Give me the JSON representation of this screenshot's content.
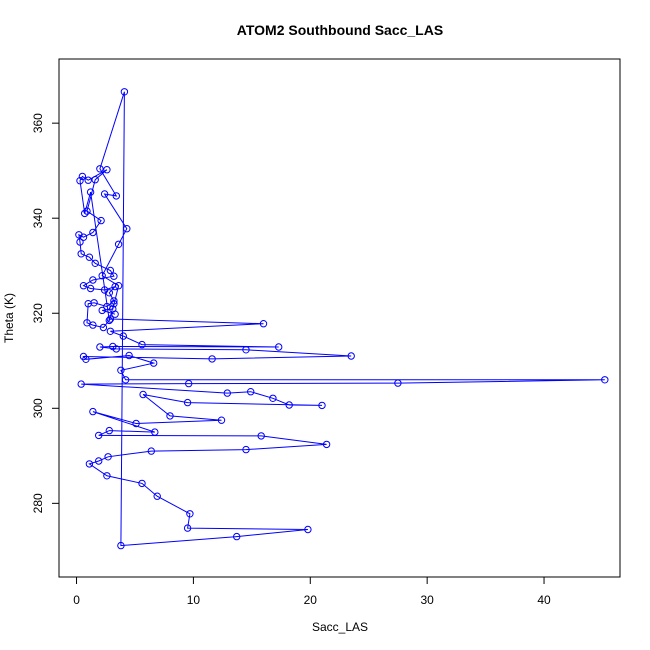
{
  "chart_data": {
    "type": "scatter",
    "title": "ATOM2 Southbound Sacc_LAS",
    "xlabel": "Sacc_LAS",
    "ylabel": "Theta (K)",
    "xlim": [
      -1.5,
      46.5
    ],
    "ylim": [
      264.5,
      373.5
    ],
    "xticks": [
      0,
      10,
      20,
      30,
      40
    ],
    "yticks": [
      280,
      300,
      320,
      340,
      360
    ],
    "grid": false,
    "series_color": "#0000FF",
    "marker": "open-circle",
    "connected": true,
    "points": [
      [
        3.2,
        322.0
      ],
      [
        2.8,
        318.5
      ],
      [
        1.2,
        345.5
      ],
      [
        0.7,
        341.0
      ],
      [
        0.3,
        347.9
      ],
      [
        0.5,
        348.8
      ],
      [
        1.0,
        348.0
      ],
      [
        2.6,
        350.2
      ],
      [
        1.6,
        348.1
      ],
      [
        0.9,
        341.5
      ],
      [
        2.1,
        339.5
      ],
      [
        1.4,
        337.0
      ],
      [
        0.6,
        336.0
      ],
      [
        0.2,
        336.5
      ],
      [
        0.3,
        335.0
      ],
      [
        0.4,
        332.5
      ],
      [
        1.1,
        331.8
      ],
      [
        1.6,
        330.5
      ],
      [
        2.9,
        329.0
      ],
      [
        3.2,
        327.8
      ],
      [
        1.4,
        327.0
      ],
      [
        0.6,
        325.8
      ],
      [
        1.2,
        325.2
      ],
      [
        2.4,
        324.9
      ],
      [
        3.3,
        325.6
      ],
      [
        2.8,
        324.3
      ],
      [
        3.2,
        322.6
      ],
      [
        2.6,
        321.4
      ],
      [
        1.5,
        322.2
      ],
      [
        1.0,
        322.0
      ],
      [
        0.9,
        318.0
      ],
      [
        1.4,
        317.5
      ],
      [
        2.3,
        317.0
      ],
      [
        2.9,
        318.8
      ],
      [
        16.0,
        317.8
      ],
      [
        2.9,
        316.2
      ],
      [
        4.0,
        315.2
      ],
      [
        5.6,
        313.4
      ],
      [
        17.3,
        312.9
      ],
      [
        3.1,
        313.0
      ],
      [
        2.0,
        312.9
      ],
      [
        3.4,
        312.5
      ],
      [
        14.5,
        312.3
      ],
      [
        23.5,
        311.0
      ],
      [
        11.6,
        310.4
      ],
      [
        0.6,
        310.9
      ],
      [
        0.8,
        310.3
      ],
      [
        4.5,
        311.1
      ],
      [
        6.6,
        309.5
      ],
      [
        3.8,
        308.0
      ],
      [
        4.2,
        306.0
      ],
      [
        45.2,
        306.0
      ],
      [
        27.5,
        305.3
      ],
      [
        9.6,
        305.2
      ],
      [
        0.4,
        305.1
      ],
      [
        12.9,
        303.2
      ],
      [
        14.9,
        303.5
      ],
      [
        16.8,
        302.1
      ],
      [
        18.2,
        300.7
      ],
      [
        21.0,
        300.6
      ],
      [
        9.5,
        301.2
      ],
      [
        5.7,
        302.9
      ],
      [
        8.0,
        298.4
      ],
      [
        12.4,
        297.5
      ],
      [
        5.1,
        296.8
      ],
      [
        1.4,
        299.3
      ],
      [
        6.7,
        295.0
      ],
      [
        2.8,
        295.3
      ],
      [
        1.9,
        294.3
      ],
      [
        15.8,
        294.2
      ],
      [
        21.4,
        292.4
      ],
      [
        14.5,
        291.3
      ],
      [
        6.4,
        291.0
      ],
      [
        2.7,
        289.8
      ],
      [
        1.9,
        288.9
      ],
      [
        1.1,
        288.3
      ],
      [
        2.6,
        285.8
      ],
      [
        5.6,
        284.2
      ],
      [
        6.9,
        281.5
      ],
      [
        9.7,
        277.8
      ],
      [
        9.5,
        274.8
      ],
      [
        19.8,
        274.5
      ],
      [
        13.7,
        273.0
      ],
      [
        3.8,
        271.1
      ],
      [
        4.1,
        366.6
      ],
      [
        2.0,
        350.4
      ],
      [
        3.4,
        344.7
      ],
      [
        2.4,
        345.1
      ],
      [
        4.3,
        337.8
      ],
      [
        3.6,
        334.5
      ],
      [
        2.2,
        327.9
      ],
      [
        3.6,
        325.8
      ],
      [
        3.1,
        320.9
      ],
      [
        2.2,
        320.6
      ],
      [
        3.3,
        319.8
      ]
    ]
  }
}
